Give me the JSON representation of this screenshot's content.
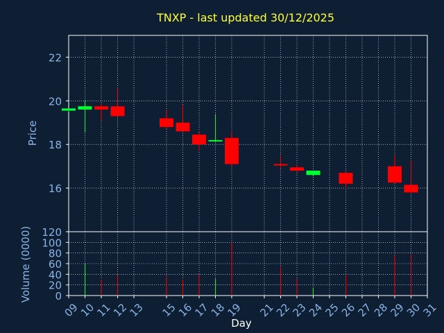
{
  "chart_data": [
    {
      "type": "candlestick",
      "title": "TNXP - last updated 30/12/2025",
      "ylabel": "Price",
      "ylim": [
        14.0,
        23.0
      ],
      "yticks": [
        16,
        18,
        20,
        22
      ],
      "grid": true,
      "colors": {
        "up": "#00ff33",
        "down": "#ff0000",
        "title": "#ffff33",
        "axis_text": "#8ab4e6",
        "grid": "#ffffff",
        "frame": "#ffffff",
        "background": "#0f1f33"
      },
      "candles": [
        {
          "date": "2025-12-09",
          "open": 19.55,
          "high": 19.65,
          "low": 19.5,
          "close": 19.65
        },
        {
          "date": "2025-12-10",
          "open": 19.6,
          "high": 20.0,
          "low": 18.55,
          "close": 19.75
        },
        {
          "date": "2025-12-11",
          "open": 19.75,
          "high": 19.9,
          "low": 19.1,
          "close": 19.6
        },
        {
          "date": "2025-12-12",
          "open": 19.75,
          "high": 20.6,
          "low": 19.3,
          "close": 19.3
        },
        {
          "date": "2025-12-15",
          "open": 19.2,
          "high": 19.6,
          "low": 18.7,
          "close": 18.8
        },
        {
          "date": "2025-12-16",
          "open": 19.0,
          "high": 19.8,
          "low": 18.6,
          "close": 18.6
        },
        {
          "date": "2025-12-17",
          "open": 18.45,
          "high": 18.6,
          "low": 17.7,
          "close": 18.0
        },
        {
          "date": "2025-12-18",
          "open": 18.15,
          "high": 19.4,
          "low": 18.1,
          "close": 18.2
        },
        {
          "date": "2025-12-19",
          "open": 18.3,
          "high": 18.6,
          "low": 17.0,
          "close": 17.1
        },
        {
          "date": "2025-12-22",
          "open": 17.1,
          "high": 17.5,
          "low": 16.9,
          "close": 17.05
        },
        {
          "date": "2025-12-23",
          "open": 16.95,
          "high": 17.1,
          "low": 16.7,
          "close": 16.8
        },
        {
          "date": "2025-12-24",
          "open": 16.6,
          "high": 16.8,
          "low": 16.55,
          "close": 16.8
        },
        {
          "date": "2025-12-26",
          "open": 16.7,
          "high": 16.75,
          "low": 16.0,
          "close": 16.2
        },
        {
          "date": "2025-12-29",
          "open": 17.0,
          "high": 17.5,
          "low": 16.25,
          "close": 16.25
        },
        {
          "date": "2025-12-30",
          "open": 16.15,
          "high": 17.3,
          "low": 15.8,
          "close": 15.8
        }
      ]
    },
    {
      "type": "bar",
      "ylabel": "Volume (0000)",
      "ylim": [
        0,
        120
      ],
      "yticks": [
        0,
        20,
        40,
        60,
        80,
        100,
        120
      ],
      "xlabel": "Day",
      "grid": true,
      "x_tick_labels": [
        "09",
        "10",
        "11",
        "12",
        "13",
        "15",
        "16",
        "17",
        "18",
        "19",
        "21",
        "22",
        "23",
        "24",
        "25",
        "26",
        "27",
        "28",
        "29",
        "30",
        "31"
      ],
      "x_tick_dates": [
        "2025-12-09",
        "2025-12-10",
        "2025-12-11",
        "2025-12-12",
        "2025-12-13",
        "2025-12-15",
        "2025-12-16",
        "2025-12-17",
        "2025-12-18",
        "2025-12-19",
        "2025-12-21",
        "2025-12-22",
        "2025-12-23",
        "2025-12-24",
        "2025-12-25",
        "2025-12-26",
        "2025-12-27",
        "2025-12-28",
        "2025-12-29",
        "2025-12-30",
        "2025-12-31"
      ],
      "bars": [
        {
          "date": "2025-12-09",
          "value": 0,
          "dir": "up"
        },
        {
          "date": "2025-12-10",
          "value": 60,
          "dir": "up"
        },
        {
          "date": "2025-12-11",
          "value": 30,
          "dir": "down"
        },
        {
          "date": "2025-12-12",
          "value": 40,
          "dir": "down"
        },
        {
          "date": "2025-12-15",
          "value": 35,
          "dir": "down"
        },
        {
          "date": "2025-12-16",
          "value": 30,
          "dir": "down"
        },
        {
          "date": "2025-12-17",
          "value": 40,
          "dir": "down"
        },
        {
          "date": "2025-12-18",
          "value": 32,
          "dir": "up"
        },
        {
          "date": "2025-12-19",
          "value": 100,
          "dir": "down"
        },
        {
          "date": "2025-12-22",
          "value": 55,
          "dir": "down"
        },
        {
          "date": "2025-12-23",
          "value": 32,
          "dir": "down"
        },
        {
          "date": "2025-12-24",
          "value": 15,
          "dir": "up"
        },
        {
          "date": "2025-12-26",
          "value": 38,
          "dir": "down"
        },
        {
          "date": "2025-12-29",
          "value": 75,
          "dir": "down"
        },
        {
          "date": "2025-12-30",
          "value": 78,
          "dir": "down"
        }
      ]
    }
  ]
}
